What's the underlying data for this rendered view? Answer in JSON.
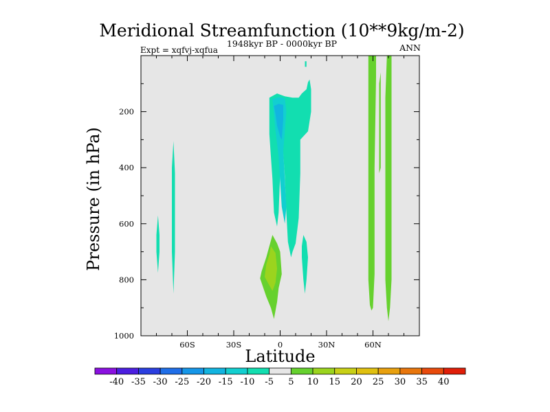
{
  "chart_data": {
    "type": "contour",
    "title": "Meridional Streamfunction (10**9kg/m-2)",
    "subtitle": "1948kyr BP - 0000kyr BP",
    "experiment": "Expt = xqfvj-xqfua",
    "season": "ANN",
    "xlabel": "Latitude",
    "ylabel": "Pressure (in hPa)",
    "xlim": [
      -90,
      90
    ],
    "ylim": [
      1000,
      0
    ],
    "x_ticks": [
      {
        "value": -60,
        "label": "60S"
      },
      {
        "value": -30,
        "label": "30S"
      },
      {
        "value": 0,
        "label": "0"
      },
      {
        "value": 30,
        "label": "30N"
      },
      {
        "value": 60,
        "label": "60N"
      }
    ],
    "y_ticks": [
      {
        "value": 200,
        "label": "200"
      },
      {
        "value": 400,
        "label": "400"
      },
      {
        "value": 600,
        "label": "600"
      },
      {
        "value": 800,
        "label": "800"
      },
      {
        "value": 1000,
        "label": "1000"
      }
    ],
    "background_color": "#e6e6e6",
    "colorbar": {
      "levels": [
        "-40",
        "-35",
        "-30",
        "-25",
        "-20",
        "-15",
        "-10",
        "-5",
        "5",
        "10",
        "15",
        "20",
        "25",
        "30",
        "35",
        "40"
      ],
      "colors": [
        "#8a10e0",
        "#4b1ee0",
        "#2a3ee0",
        "#1f6ee8",
        "#1596e8",
        "#12b4e0",
        "#12cfd0",
        "#12deb0",
        "#e6e6e6",
        "#66d12e",
        "#9bd41e",
        "#c8d016",
        "#e0c010",
        "#e8a00e",
        "#e8760c",
        "#e84a0c",
        "#e01e08"
      ]
    },
    "regions": [
      {
        "name": "sh-highlat-cell-a",
        "value": -7.5,
        "polygon": [
          [
            -79,
            570
          ],
          [
            -78,
            640
          ],
          [
            -78,
            700
          ],
          [
            -79,
            775
          ],
          [
            -80,
            700
          ],
          [
            -80,
            640
          ]
        ]
      },
      {
        "name": "sh-highlat-cell-b",
        "value": -7.5,
        "polygon": [
          [
            -69,
            305
          ],
          [
            -68,
            420
          ],
          [
            -68,
            600
          ],
          [
            -68,
            700
          ],
          [
            -69,
            850
          ],
          [
            -70,
            700
          ],
          [
            -70,
            550
          ],
          [
            -70,
            400
          ]
        ]
      },
      {
        "name": "tropical-upper-band",
        "value": -7.5,
        "polygon": [
          [
            -7,
            150
          ],
          [
            -2,
            135
          ],
          [
            3,
            145
          ],
          [
            8,
            150
          ],
          [
            12,
            150
          ],
          [
            14,
            135
          ],
          [
            17,
            120
          ],
          [
            18,
            95
          ],
          [
            19,
            85
          ],
          [
            20,
            120
          ],
          [
            20,
            200
          ],
          [
            18,
            270
          ],
          [
            13,
            300
          ],
          [
            13,
            420
          ],
          [
            12,
            580
          ],
          [
            10,
            670
          ],
          [
            8,
            700
          ],
          [
            7,
            720
          ],
          [
            5,
            665
          ],
          [
            4,
            560
          ],
          [
            3,
            430
          ],
          [
            2,
            350
          ],
          [
            0,
            420
          ],
          [
            -1,
            560
          ],
          [
            -2,
            610
          ],
          [
            -4,
            560
          ],
          [
            -5,
            440
          ],
          [
            -6,
            360
          ],
          [
            -7,
            280
          ],
          [
            -7,
            220
          ]
        ]
      },
      {
        "name": "tropical-upper-core",
        "value": -12.5,
        "polygon": [
          [
            -5,
            155
          ],
          [
            -1,
            148
          ],
          [
            3,
            152
          ],
          [
            4,
            200
          ],
          [
            3,
            270
          ],
          [
            2,
            340
          ],
          [
            3,
            440
          ],
          [
            4,
            540
          ],
          [
            3,
            600
          ],
          [
            1,
            540
          ],
          [
            0,
            450
          ],
          [
            -1,
            360
          ],
          [
            -3,
            270
          ],
          [
            -4,
            210
          ]
        ]
      },
      {
        "name": "tropical-deep-core",
        "value": -17.5,
        "polygon": [
          [
            -4,
            180
          ],
          [
            -1,
            172
          ],
          [
            2,
            176
          ],
          [
            2,
            230
          ],
          [
            1,
            300
          ],
          [
            0,
            290
          ],
          [
            -2,
            250
          ],
          [
            -3,
            210
          ]
        ]
      },
      {
        "name": "cap-20n",
        "value": -7.5,
        "polygon": [
          [
            16,
            20
          ],
          [
            17,
            20
          ],
          [
            17,
            40
          ],
          [
            16,
            40
          ]
        ]
      },
      {
        "name": "lower-15n-cell",
        "value": -7.5,
        "polygon": [
          [
            15,
            640
          ],
          [
            17,
            665
          ],
          [
            18,
            720
          ],
          [
            17,
            800
          ],
          [
            16,
            850
          ],
          [
            15,
            800
          ],
          [
            14,
            720
          ],
          [
            14,
            680
          ]
        ]
      },
      {
        "name": "sh-lower-cell",
        "value": 7.5,
        "polygon": [
          [
            -5,
            640
          ],
          [
            -2,
            670
          ],
          [
            0,
            700
          ],
          [
            1,
            780
          ],
          [
            -1,
            830
          ],
          [
            -2,
            880
          ],
          [
            -4,
            940
          ],
          [
            -6,
            900
          ],
          [
            -9,
            860
          ],
          [
            -13,
            795
          ],
          [
            -12,
            770
          ],
          [
            -9,
            720
          ],
          [
            -7,
            680
          ]
        ]
      },
      {
        "name": "sh-lower-core",
        "value": 12.5,
        "polygon": [
          [
            -6,
            680
          ],
          [
            -3,
            705
          ],
          [
            -2,
            760
          ],
          [
            -3,
            810
          ],
          [
            -5,
            840
          ],
          [
            -8,
            810
          ],
          [
            -10,
            790
          ],
          [
            -9,
            745
          ],
          [
            -7,
            710
          ]
        ]
      },
      {
        "name": "nh-jet-cell-a",
        "value": 7.5,
        "polygon": [
          [
            57,
            0
          ],
          [
            62,
            0
          ],
          [
            62,
            75
          ],
          [
            61,
            400
          ],
          [
            61,
            600
          ],
          [
            61,
            780
          ],
          [
            60,
            900
          ],
          [
            59,
            910
          ],
          [
            58,
            890
          ],
          [
            57,
            800
          ],
          [
            57,
            600
          ],
          [
            57,
            400
          ],
          [
            57,
            200
          ]
        ]
      },
      {
        "name": "nh-jet-cell-b",
        "value": 7.5,
        "polygon": [
          [
            69,
            0
          ],
          [
            72,
            0
          ],
          [
            72,
            200
          ],
          [
            72,
            500
          ],
          [
            72,
            800
          ],
          [
            71,
            900
          ],
          [
            70,
            948
          ],
          [
            69,
            900
          ],
          [
            68,
            800
          ],
          [
            68,
            500
          ],
          [
            68,
            300
          ],
          [
            68,
            150
          ]
        ]
      },
      {
        "name": "nh-jet-strip-narrow",
        "value": 7.5,
        "polygon": [
          [
            64,
            100
          ],
          [
            65,
            60
          ],
          [
            65,
            200
          ],
          [
            65,
            400
          ],
          [
            64,
            420
          ]
        ]
      }
    ]
  }
}
